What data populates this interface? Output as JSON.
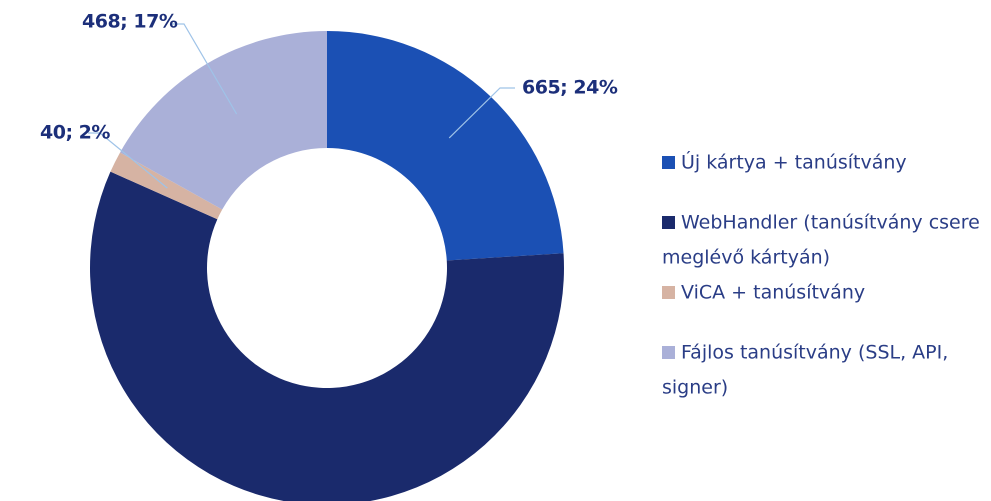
{
  "chart_data": {
    "type": "donut",
    "categories": [
      "Új kártya + tanúsítvány",
      "WebHandler (tanúsítvány csere meglévő kártyán)",
      "ViCA + tanúsítvány",
      "Fájlos tanúsítvány (SSL, API, signer)"
    ],
    "values": [
      665,
      1597,
      40,
      468
    ],
    "value_labels": [
      "665; 24%",
      null,
      "40; 2%",
      "468; 17%"
    ],
    "colors": [
      "#1b50b4",
      "#1a2a6c",
      "#d6b3a3",
      "#aab0d8"
    ],
    "legend": "right"
  }
}
